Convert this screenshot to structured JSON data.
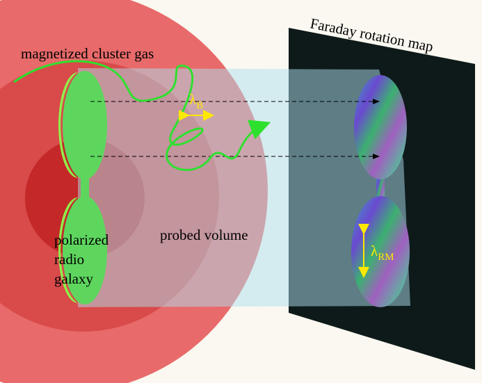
{
  "map_title": "Faraday rotation map",
  "gas_label": "magnetized cluster gas",
  "lambda_b": {
    "symbol": "λ",
    "subscript": "B"
  },
  "volume_label": "probed volume",
  "galaxy_label": [
    "polarized",
    "radio",
    "galaxy"
  ],
  "lambda_rm": {
    "symbol": "λ",
    "subscript": "RM"
  }
}
